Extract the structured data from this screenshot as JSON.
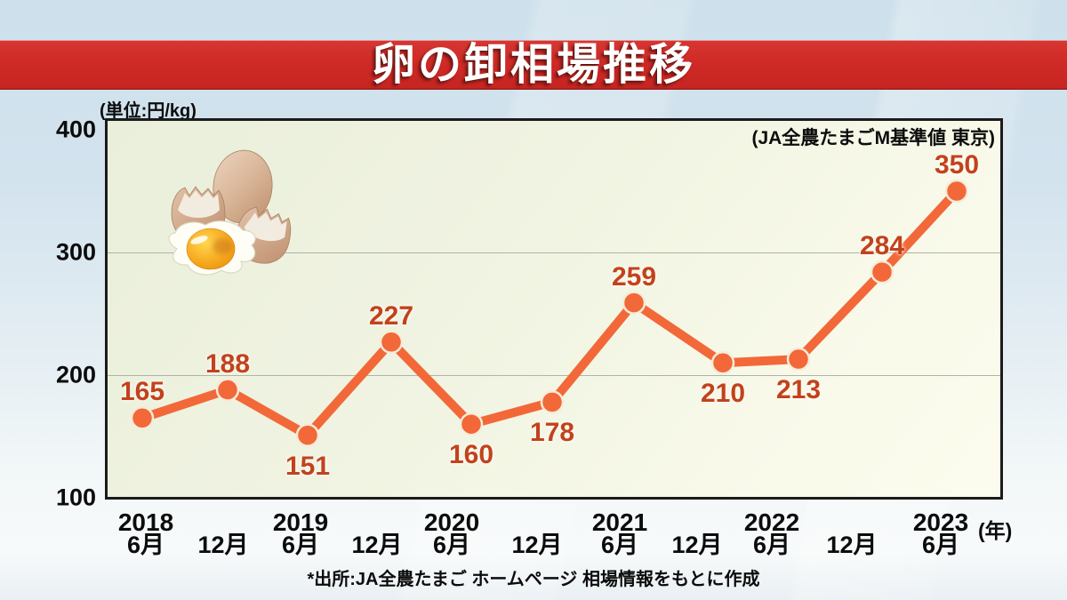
{
  "banner": {
    "title": "卵の卸相場推移",
    "bg_color": "#cf2a26",
    "text_color": "#ffffff"
  },
  "chart_area": {
    "unit_label": "(単位:円/kg)",
    "basis_note": "(JA全農たまごM基準値 東京)"
  },
  "x_axis_suffix": "(年)",
  "footer": {
    "source_note": "*出所:JA全農たまご ホームページ 相場情報をもとに作成"
  },
  "decor": {
    "egg_illustration": "whole-egg-cracked-shells-fried-egg-yolk"
  },
  "chart_data": {
    "type": "line",
    "title": "卵の卸相場推移",
    "unit": "円/kg",
    "ylabel": "円/kg",
    "ylim": [
      100,
      400
    ],
    "yticks": [
      400,
      300,
      200,
      100
    ],
    "gridlines": [
      300,
      200
    ],
    "grid": "horizontal",
    "legend_position": "none",
    "categories": [
      "2018年6月",
      "2018年12月",
      "2019年6月",
      "2019年12月",
      "2020年6月",
      "2020年12月",
      "2021年6月",
      "2021年12月",
      "2022年6月",
      "2022年12月",
      "2023年6月"
    ],
    "values": [
      165,
      188,
      151,
      227,
      160,
      178,
      259,
      210,
      213,
      284,
      350
    ],
    "months": [
      "6月",
      "12月",
      "6月",
      "12月",
      "6月",
      "12月",
      "6月",
      "12月",
      "6月",
      "12月",
      "6月"
    ],
    "years": [
      {
        "label": "2018",
        "index": 0
      },
      {
        "label": "2019",
        "index": 2
      },
      {
        "label": "2020",
        "index": 4
      },
      {
        "label": "2021",
        "index": 6
      },
      {
        "label": "2022",
        "index": 8
      },
      {
        "label": "2023",
        "index": 10
      }
    ],
    "label_side": [
      "above",
      "above",
      "below",
      "above",
      "below",
      "below",
      "above",
      "below",
      "below",
      "above",
      "above"
    ],
    "line_color": "#f26839",
    "point_color": "#f26839",
    "point_ring_color": "#f6ecd8",
    "value_label_color": "#c2421c",
    "gridline_color": "#aeb4a6"
  }
}
